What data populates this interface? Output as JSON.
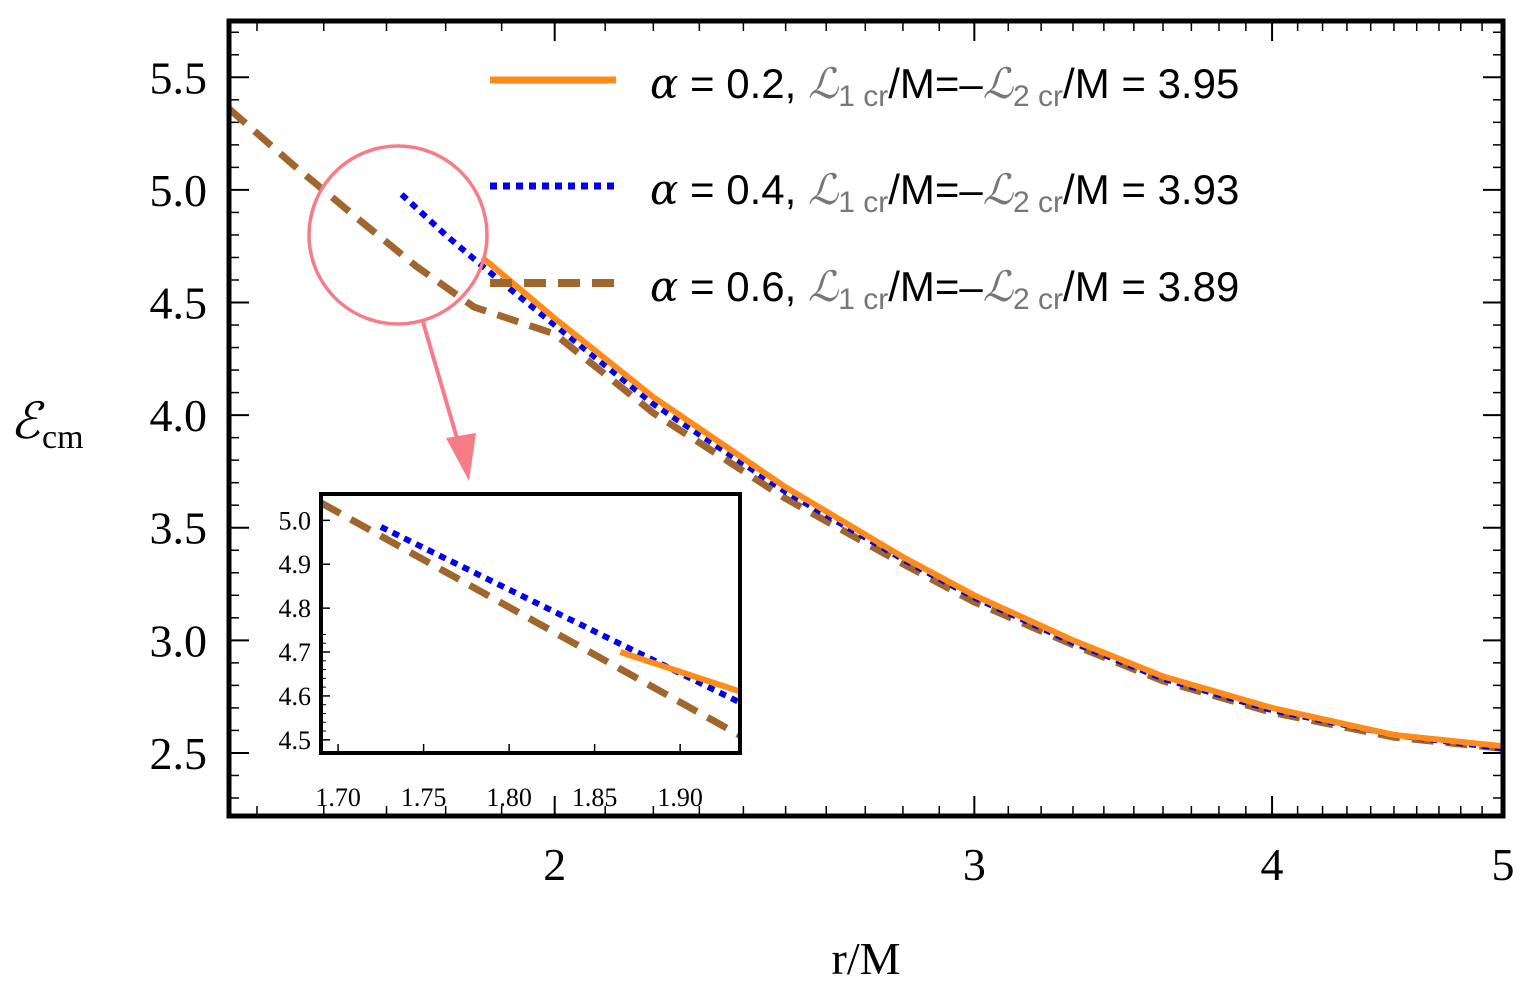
{
  "chart_data": {
    "type": "line",
    "xlabel": "r/M",
    "ylabel": "ℰ",
    "ylabel_sub": "cm",
    "xscale": "log",
    "xlim": [
      1.46,
      5.0
    ],
    "ylim": [
      2.22,
      5.75
    ],
    "xticks": [
      {
        "value": 2,
        "label": "2"
      },
      {
        "value": 3,
        "label": "3"
      },
      {
        "value": 4,
        "label": "4"
      },
      {
        "value": 5,
        "label": "5"
      }
    ],
    "yticks": [
      {
        "value": 2.5,
        "label": "2.5"
      },
      {
        "value": 3.0,
        "label": "3.0"
      },
      {
        "value": 3.5,
        "label": "3.5"
      },
      {
        "value": 4.0,
        "label": "4.0"
      },
      {
        "value": 4.5,
        "label": "4.5"
      },
      {
        "value": 5.0,
        "label": "5.0"
      },
      {
        "value": 5.5,
        "label": "5.5"
      }
    ],
    "series": [
      {
        "name": "alpha-0.2",
        "legend": {
          "alpha": "α",
          "mid": " = 0.2, ",
          "l1": "ℒ",
          "s1": "1 cr",
          "eq": "/M=–",
          "l2": "ℒ",
          "s2": "2 cr",
          "tail": "/M = 3.95"
        },
        "color": "#FF8C1A",
        "dash": "solid",
        "x": [
          1.865,
          2.0,
          2.2,
          2.5,
          2.8,
          3.0,
          3.3,
          3.6,
          4.0,
          4.5,
          5.0
        ],
        "y": [
          4.7,
          4.43,
          4.08,
          3.68,
          3.37,
          3.2,
          3.0,
          2.84,
          2.7,
          2.58,
          2.53
        ]
      },
      {
        "name": "alpha-0.4",
        "legend": {
          "alpha": "α",
          "mid": " = 0.4, ",
          "l1": "ℒ",
          "s1": "1 cr",
          "eq": "/M=–",
          "l2": "ℒ",
          "s2": "2 cr",
          "tail": "/M = 3.93"
        },
        "color": "#0000EE",
        "dash": "dotted",
        "x": [
          1.725,
          1.8,
          1.9,
          2.0,
          2.2,
          2.5,
          2.8,
          3.0,
          3.3,
          3.6,
          4.0,
          4.5,
          5.0
        ],
        "y": [
          4.98,
          4.8,
          4.59,
          4.4,
          4.05,
          3.66,
          3.36,
          3.19,
          2.99,
          2.83,
          2.69,
          2.58,
          2.52
        ]
      },
      {
        "name": "alpha-0.6",
        "legend": {
          "alpha": "α",
          "mid": " = 0.6, ",
          "l1": "ℒ",
          "s1": "1 cr",
          "eq": "/M=–",
          "l2": "ℒ",
          "s2": "2 cr",
          "tail": "/M = 3.89"
        },
        "color": "#A0662E",
        "dash": "dashed",
        "x": [
          1.46,
          1.55,
          1.65,
          1.75,
          1.85,
          2.0,
          2.2,
          2.5,
          2.8,
          3.0,
          3.3,
          3.6,
          4.0,
          4.5,
          5.0
        ],
        "y": [
          5.36,
          5.12,
          4.88,
          4.66,
          4.48,
          4.36,
          4.01,
          3.63,
          3.34,
          3.17,
          2.98,
          2.82,
          2.68,
          2.57,
          2.52
        ]
      }
    ],
    "inset": {
      "xlim": [
        1.69,
        1.935
      ],
      "ylim": [
        4.47,
        5.06
      ],
      "xticks": [
        {
          "value": 1.7,
          "label": "1.70"
        },
        {
          "value": 1.75,
          "label": "1.75"
        },
        {
          "value": 1.8,
          "label": "1.80"
        },
        {
          "value": 1.85,
          "label": "1.85"
        },
        {
          "value": 1.9,
          "label": "1.90"
        }
      ],
      "yticks": [
        {
          "value": 4.5,
          "label": "4.5"
        },
        {
          "value": 4.6,
          "label": "4.6"
        },
        {
          "value": 4.7,
          "label": "4.7"
        },
        {
          "value": 4.8,
          "label": "4.8"
        },
        {
          "value": 4.9,
          "label": "4.9"
        },
        {
          "value": 5.0,
          "label": "5.0"
        }
      ],
      "series": [
        {
          "name": "alpha-0.2",
          "x": [
            1.865,
            1.935
          ],
          "y": [
            4.7,
            4.61
          ]
        },
        {
          "name": "alpha-0.4",
          "x": [
            1.725,
            1.935
          ],
          "y": [
            4.985,
            4.585
          ]
        },
        {
          "name": "alpha-0.6",
          "x": [
            1.69,
            1.935
          ],
          "y": [
            5.04,
            4.51
          ]
        }
      ]
    },
    "zoom": {
      "center_x": 1.73,
      "center_y": 4.83
    }
  }
}
